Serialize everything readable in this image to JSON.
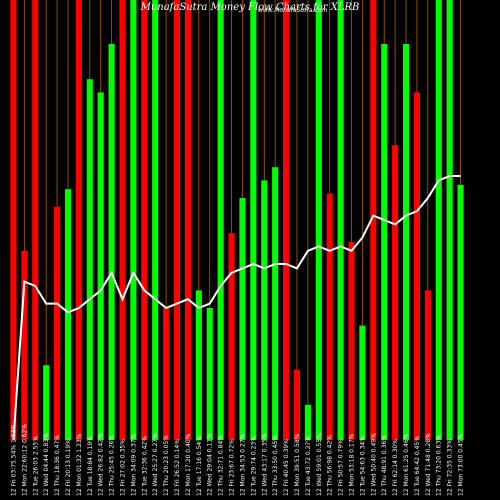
{
  "header": {
    "title": "MunafaSutra  Money Flow  Charts for XLRB",
    "watermark": "www.MunafaSutra.com"
  },
  "chart_data": {
    "type": "bar",
    "title": "MunafaSutra  Money Flow  Charts for XLRB",
    "xlabel": "",
    "ylabel": "",
    "ylim": [
      0,
      100
    ],
    "grid": true,
    "colors": {
      "up": "#00ff00",
      "down": "#ff0000",
      "grid": "#b06000",
      "line": "#ffffff",
      "background": "#000000"
    },
    "categories": [
      "12 Fri 03:75.54% 1.03%",
      "12 Mon 22:60:12 0.62%",
      "12 Tue 26:03 2.55%",
      "12 Wed 04:44 0.83%",
      "12 Thu 18:36 0.47%",
      "12 Fri 20:13 0.19%",
      "12 Mon 01:32 1.23%",
      "12 Tue 18:84 0.19%",
      "12 Wed 26:82 0.42%",
      "12 Thu 25:45 0.26%",
      "12 Fri 27:02 0.35%",
      "12 Mon 34:09 0.37%",
      "12 Tue 32:36 0.42%",
      "12 Wed 25:27 0.27%",
      "12 Thu 20:23 0.05%",
      "12 Fri 26:52 0.14%",
      "12 Mon 17:20 0.40%",
      "12 Tue 17:16 0.54%",
      "12 Wed 29:04 0.11%",
      "12 Thu 32:71 0.84%",
      "12 Fri 23:67 0.72%",
      "12 Mon 34:53 0.27%",
      "12 Tue 29:74 0.23%",
      "12 Wed 43:17 0.35%",
      "12 Thu 33:50 0.45%",
      "12 Fri 40:45 0.39%",
      "12 Mon 39:51 0.58%",
      "12 Tue 43:72 0.27%",
      "12 Wed 59:01 0.55%",
      "12 Thu 56:98 0.42%",
      "12 Fri 50:57 0.79%",
      "12 Mon 53:18 0.17%",
      "12 Tue 54:63 0.34%",
      "12 Wed 50:40 0.49%",
      "12 Thu 48:91 0.36%",
      "12 Fri 62:14 0.30%",
      "12 Mon 61:25 0.46%",
      "12 Tue 64:42 0.45%",
      "12 Wed 71:48 0.28%",
      "12 Thu 73:20 0.63%",
      "12 Fri 72:35 0.33%",
      "12 Mon 73:00 0.45%"
    ],
    "bar_colors": [
      "red",
      "red",
      "red",
      "green",
      "red",
      "green",
      "red",
      "green",
      "green",
      "green",
      "red",
      "green",
      "red",
      "green",
      "red",
      "red",
      "red",
      "green",
      "green",
      "green",
      "red",
      "green",
      "green",
      "green",
      "green",
      "red",
      "red",
      "green",
      "green",
      "red",
      "green",
      "red",
      "green",
      "red",
      "green",
      "red",
      "green",
      "red",
      "red",
      "green",
      "green",
      "green"
    ],
    "values": [
      100,
      43,
      100,
      17,
      53,
      57,
      100,
      82,
      79,
      90,
      100,
      100,
      100,
      100,
      30,
      100,
      100,
      34,
      30,
      100,
      47,
      55,
      100,
      59,
      62,
      100,
      16,
      8,
      100,
      56,
      100,
      45,
      26,
      100,
      90,
      67,
      90,
      79,
      34,
      100,
      100,
      58
    ],
    "line_values": [
      0,
      36,
      35,
      31,
      31,
      29,
      30,
      32,
      34,
      38,
      32,
      38,
      34,
      32,
      30,
      31,
      32,
      30,
      31,
      35,
      38,
      39,
      40,
      39,
      40,
      40,
      39,
      43,
      44,
      43,
      44,
      43,
      46,
      51,
      50,
      49,
      51,
      52,
      55,
      59,
      60,
      60
    ]
  }
}
